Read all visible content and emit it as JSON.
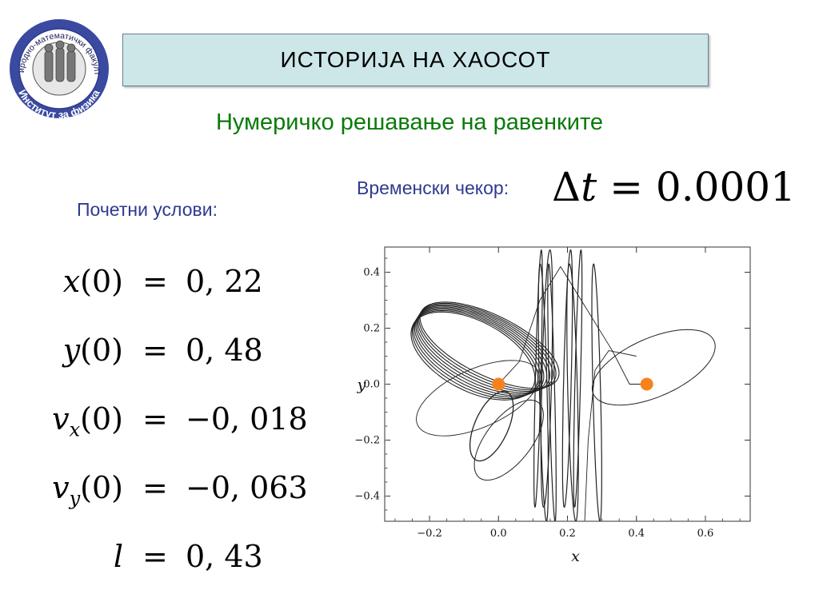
{
  "logo": {
    "ring_text_top": "Природно-математички факултет",
    "ring_text_bottom": "Институт за физика",
    "colors": {
      "ring": "#2e3a8c",
      "inner": "#ffffff"
    }
  },
  "header": {
    "title": "ИСТОРИЈА НА ХАОСОТ"
  },
  "subtitle": "Нумеричко решавање на равенките",
  "timestep": {
    "label": "Временски чекор:",
    "symbol": "Δ",
    "variable": "t",
    "equals": "=",
    "value": "0.0001"
  },
  "initial_conditions": {
    "label": "Почетни услови:",
    "rows": [
      {
        "var": "x",
        "sub": "",
        "arg": "(0)",
        "eq": "=",
        "value": "0, 22"
      },
      {
        "var": "y",
        "sub": "",
        "arg": "(0)",
        "eq": "=",
        "value": "0, 48"
      },
      {
        "var": "v",
        "sub": "x",
        "arg": "(0)",
        "eq": "=",
        "value": "−0, 018"
      },
      {
        "var": "v",
        "sub": "y",
        "arg": "(0)",
        "eq": "=",
        "value": "−0, 063"
      },
      {
        "var": "l",
        "sub": "",
        "arg": "",
        "eq": "=",
        "value": "0, 43"
      }
    ]
  },
  "chart_data": {
    "type": "line",
    "title": "",
    "xlabel": "x",
    "ylabel": "y",
    "xlim": [
      -0.33,
      0.73
    ],
    "ylim": [
      -0.49,
      0.49
    ],
    "x_ticks": [
      -0.2,
      0.0,
      0.2,
      0.4,
      0.6
    ],
    "x_tick_labels": [
      "−0.2",
      "0.0",
      "0.2",
      "0.4",
      "0.6"
    ],
    "y_ticks": [
      -0.4,
      -0.2,
      0.0,
      0.2,
      0.4
    ],
    "y_tick_labels": [
      "−0.4",
      "−0.2",
      "0.0",
      "0.2",
      "0.4"
    ],
    "grid": false,
    "points": [
      {
        "x": 0.0,
        "y": 0.0
      },
      {
        "x": 0.43,
        "y": 0.0
      }
    ],
    "point_color": "#f7821b",
    "trajectory_color": "#222222"
  }
}
